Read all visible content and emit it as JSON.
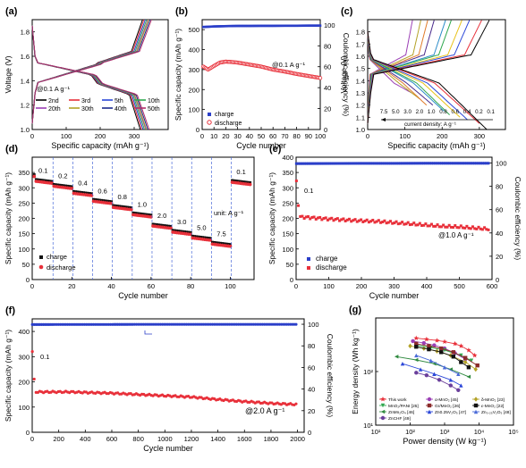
{
  "figure": {
    "panels": [
      {
        "id": "a",
        "label": "(a)"
      },
      {
        "id": "b",
        "label": "(b)"
      },
      {
        "id": "c",
        "label": "(c)"
      },
      {
        "id": "d",
        "label": "(d)"
      },
      {
        "id": "e",
        "label": "(e)"
      },
      {
        "id": "f",
        "label": "(f)"
      },
      {
        "id": "g",
        "label": "(g)"
      }
    ]
  },
  "chart_data": [
    {
      "id": "a",
      "type": "line",
      "xlabel": "Specific capacity (mAh g⁻¹)",
      "ylabel": "Voltage (V)",
      "xlim": [
        0,
        400
      ],
      "ylim": [
        1.0,
        1.9
      ],
      "xticks": [
        "0",
        "100",
        "200",
        "300"
      ],
      "yticks": [
        "1.0",
        "1.2",
        "1.4",
        "1.6",
        "1.8"
      ],
      "annotation": "@0.1 A g⁻¹",
      "legend_position": "bottom-left",
      "series": [
        {
          "name": "2nd",
          "color": "#000000",
          "capacity": 318
        },
        {
          "name": "3rd",
          "color": "#e8303a",
          "capacity": 322
        },
        {
          "name": "5th",
          "color": "#2b47d8",
          "capacity": 326
        },
        {
          "name": "10th",
          "color": "#2fa84f",
          "capacity": 330
        },
        {
          "name": "20th",
          "color": "#9b3fb5",
          "capacity": 334
        },
        {
          "name": "30th",
          "color": "#b3a227",
          "capacity": 336
        },
        {
          "name": "40th",
          "color": "#1a2a8c",
          "capacity": 340
        },
        {
          "name": "50th",
          "color": "#b0306a",
          "capacity": 344
        }
      ]
    },
    {
      "id": "b",
      "type": "scatter",
      "xlabel": "Cycle number",
      "ylabel": "Specific capacity (mAh g⁻¹)",
      "y2label": "Coulombic efficiency (%)",
      "xlim": [
        0,
        100
      ],
      "ylim": [
        0,
        550
      ],
      "y2lim": [
        0,
        105
      ],
      "xticks": [
        "0",
        "10",
        "20",
        "30",
        "40",
        "50",
        "60",
        "70",
        "80",
        "90",
        "100"
      ],
      "yticks": [
        "0",
        "100",
        "200",
        "300",
        "400",
        "500"
      ],
      "y2ticks": [
        "0",
        "20",
        "40",
        "60",
        "80",
        "100"
      ],
      "annotation": "@0.1 A g⁻¹",
      "legend": [
        "charge",
        "discharge"
      ],
      "series": [
        {
          "name": "charge",
          "axis": "y2",
          "color": "#2b3fc9",
          "x": [
            1,
            10,
            20,
            30,
            40,
            50,
            60,
            70,
            80,
            90,
            100
          ],
          "values": [
            98,
            98.5,
            98.8,
            99,
            99,
            99.1,
            99.1,
            99.2,
            99.2,
            99.3,
            99.3
          ]
        },
        {
          "name": "discharge",
          "axis": "y",
          "color": "#e8303a",
          "x": [
            1,
            5,
            10,
            15,
            20,
            25,
            30,
            40,
            50,
            60,
            70,
            80,
            90,
            100
          ],
          "values": [
            315,
            300,
            318,
            335,
            340,
            338,
            335,
            325,
            315,
            300,
            290,
            278,
            268,
            258
          ]
        }
      ]
    },
    {
      "id": "c",
      "type": "line",
      "xlabel": "Specific capacity (mAh g⁻¹)",
      "ylabel": "Voltage (V)",
      "xlim": [
        0,
        370
      ],
      "ylim": [
        1.0,
        1.9
      ],
      "xticks": [
        "0",
        "100",
        "200",
        "300"
      ],
      "yticks": [
        "1.0",
        "1.1",
        "1.2",
        "1.3",
        "1.4",
        "1.5",
        "1.6",
        "1.7",
        "1.8"
      ],
      "annotation": "current density: A g⁻¹",
      "series": [
        {
          "name": "7.5",
          "color": "#9b3fb5",
          "capacity": 118,
          "vmin": 1.3
        },
        {
          "name": "5.0",
          "color": "#b3a227",
          "capacity": 140,
          "vmin": 1.25
        },
        {
          "name": "3.0",
          "color": "#e07b2a",
          "capacity": 158,
          "vmin": 1.2
        },
        {
          "name": "2.0",
          "color": "#4a2b8c",
          "capacity": 175,
          "vmin": 1.2
        },
        {
          "name": "1.0",
          "color": "#2b8cc9",
          "capacity": 205,
          "vmin": 1.15
        },
        {
          "name": "0.8",
          "color": "#2fa84f",
          "capacity": 220,
          "vmin": 1.12
        },
        {
          "name": "0.6",
          "color": "#e8c21a",
          "capacity": 248,
          "vmin": 1.1
        },
        {
          "name": "0.4",
          "color": "#2b47d8",
          "capacity": 268,
          "vmin": 1.08
        },
        {
          "name": "0.2",
          "color": "#e8303a",
          "capacity": 300,
          "vmin": 1.05
        },
        {
          "name": "0.1",
          "color": "#000000",
          "capacity": 320,
          "vmin": 1.0
        }
      ]
    },
    {
      "id": "d",
      "type": "scatter",
      "xlabel": "Cycle number",
      "ylabel": "Specific capacity (mAh g⁻¹)",
      "xlim": [
        0,
        112
      ],
      "ylim": [
        0,
        400
      ],
      "xticks": [
        "0",
        "20",
        "40",
        "60",
        "80",
        "100"
      ],
      "yticks": [
        "0",
        "50",
        "100",
        "150",
        "200",
        "250",
        "300",
        "350"
      ],
      "unit_note": "unit: A g⁻¹",
      "legend": [
        "charge",
        "discharge"
      ],
      "stages": [
        {
          "label": "0.1",
          "start": 1,
          "end": 10,
          "value": 322
        },
        {
          "label": "0.2",
          "start": 11,
          "end": 20,
          "value": 305
        },
        {
          "label": "0.4",
          "start": 21,
          "end": 30,
          "value": 282
        },
        {
          "label": "0.6",
          "start": 31,
          "end": 40,
          "value": 256
        },
        {
          "label": "0.8",
          "start": 41,
          "end": 50,
          "value": 236
        },
        {
          "label": "1.0",
          "start": 51,
          "end": 60,
          "value": 212
        },
        {
          "label": "2.0",
          "start": 61,
          "end": 70,
          "value": 175
        },
        {
          "label": "3.0",
          "start": 71,
          "end": 80,
          "value": 155
        },
        {
          "label": "5.0",
          "start": 81,
          "end": 90,
          "value": 136
        },
        {
          "label": "7.5",
          "start": 91,
          "end": 100,
          "value": 116
        },
        {
          "label": "0.1",
          "start": 101,
          "end": 110,
          "value": 318
        }
      ]
    },
    {
      "id": "e",
      "type": "scatter",
      "xlabel": "Cycle number",
      "ylabel": "Specific capacity (mAh g⁻¹)",
      "y2label": "Coulombic efficiency (%)",
      "xlim": [
        0,
        600
      ],
      "ylim": [
        0,
        400
      ],
      "y2lim": [
        0,
        105
      ],
      "xticks": [
        "0",
        "100",
        "200",
        "300",
        "400",
        "500",
        "600"
      ],
      "yticks": [
        "0",
        "50",
        "100",
        "150",
        "200",
        "250",
        "300",
        "350",
        "400"
      ],
      "y2ticks": [
        "0",
        "20",
        "40",
        "60",
        "80",
        "100"
      ],
      "annotation": "@1.0 A g⁻¹",
      "start_note": "0.1",
      "legend": [
        "charge",
        "discharge"
      ],
      "series": [
        {
          "name": "charge",
          "axis": "y2",
          "color": "#2b3fc9",
          "x": [
            10,
            100,
            200,
            300,
            400,
            500,
            590
          ],
          "values": [
            99.5,
            99.6,
            99.7,
            99.7,
            99.8,
            99.8,
            99.8
          ]
        },
        {
          "name": "discharge",
          "axis": "y",
          "color": "#e8303a",
          "x": [
            1,
            3,
            10,
            50,
            100,
            150,
            200,
            250,
            300,
            350,
            400,
            450,
            500,
            550,
            590
          ],
          "values": [
            320,
            300,
            205,
            202,
            198,
            195,
            192,
            190,
            186,
            182,
            178,
            174,
            172,
            168,
            165
          ]
        }
      ]
    },
    {
      "id": "f",
      "type": "scatter",
      "xlabel": "Cycle number",
      "ylabel": "Specific capacity (mAh g⁻¹)",
      "y2label": "Coulombic efficiency (%)",
      "xlim": [
        0,
        2050
      ],
      "ylim": [
        0,
        450
      ],
      "y2lim": [
        0,
        105
      ],
      "xticks": [
        "0",
        "200",
        "400",
        "600",
        "800",
        "1000",
        "1200",
        "1400",
        "1600",
        "1800",
        "2000"
      ],
      "yticks": [
        "0",
        "100",
        "200",
        "300",
        "400"
      ],
      "y2ticks": [
        "0",
        "20",
        "40",
        "60",
        "80",
        "100"
      ],
      "annotation": "@2.0 A g⁻¹",
      "start_note": "0.1",
      "series": [
        {
          "name": "charge",
          "axis": "y2",
          "color": "#2b3fc9",
          "x": [
            20,
            200,
            400,
            600,
            800,
            1000,
            1200,
            1400,
            1600,
            1800,
            2000
          ],
          "values": [
            99.7,
            99.8,
            99.8,
            99.8,
            99.9,
            99.9,
            99.9,
            99.9,
            99.9,
            99.9,
            99.9
          ]
        },
        {
          "name": "discharge",
          "axis": "y",
          "color": "#e8303a",
          "x": [
            1,
            5,
            20,
            100,
            200,
            300,
            400,
            600,
            800,
            1000,
            1200,
            1400,
            1600,
            1800,
            2000
          ],
          "values": [
            320,
            305,
            160,
            160,
            160,
            160,
            158,
            155,
            150,
            145,
            140,
            130,
            122,
            115,
            110
          ]
        }
      ]
    },
    {
      "id": "g",
      "type": "line",
      "xlabel": "Power density (W kg⁻¹)",
      "ylabel": "Energy density (Wh kg⁻¹)",
      "xscale": "log",
      "yscale": "log",
      "xlim": [
        10,
        100000
      ],
      "ylim": [
        10,
        1000
      ],
      "xticks": [
        "10¹",
        "10²",
        "10³",
        "10⁴",
        "10⁵"
      ],
      "yticks": [
        "10¹",
        "10²"
      ],
      "series": [
        {
          "name": "This work",
          "color": "#e8303a",
          "marker": "star",
          "x": [
            150,
            300,
            600,
            1000,
            2000,
            3000,
            5000,
            7500
          ],
          "values": [
            420,
            400,
            380,
            360,
            330,
            300,
            250,
            200
          ]
        },
        {
          "name": "α-MnO₂ [45]",
          "color": "#9b3fb5",
          "marker": "circle",
          "x": [
            120,
            250,
            500,
            1000,
            2000,
            4000
          ],
          "values": [
            370,
            340,
            310,
            270,
            220,
            170
          ]
        },
        {
          "name": "δ-MnO₂ [23]",
          "color": "#b3a227",
          "marker": "diamond",
          "x": [
            100,
            250,
            600,
            1500,
            4000,
            8000
          ],
          "values": [
            300,
            270,
            240,
            200,
            150,
            110
          ]
        },
        {
          "name": "MnO₂/PANI [25]",
          "color": "#2fa84f",
          "marker": "triangle-down",
          "x": [
            150,
            400,
            1000,
            3000,
            6000
          ],
          "values": [
            310,
            280,
            250,
            200,
            160
          ]
        },
        {
          "name": "Gr/MnO₂ [26]",
          "color": "#8a2b2b",
          "marker": "square",
          "x": [
            150,
            350,
            800,
            1800,
            4000,
            9000
          ],
          "values": [
            330,
            300,
            270,
            230,
            180,
            130
          ]
        },
        {
          "name": "ε-MnO₂ [22]",
          "color": "#111111",
          "marker": "square",
          "x": [
            150,
            350,
            800,
            1800,
            3000,
            5000
          ],
          "values": [
            290,
            260,
            230,
            190,
            150,
            120
          ]
        },
        {
          "name": "ZnMn₂O₄ [46]",
          "color": "#2f8a3f",
          "marker": "triangle-left",
          "x": [
            40,
            150,
            500,
            1500,
            5000
          ],
          "values": [
            190,
            165,
            140,
            110,
            80
          ]
        },
        {
          "name": "Zn0.25V₂O₅ [47]",
          "color": "#2b47d8",
          "marker": "triangle-up",
          "x": [
            60,
            200,
            500,
            1500,
            3000
          ],
          "values": [
            140,
            110,
            90,
            70,
            55
          ]
        },
        {
          "name": "Zn₀.₂₅V₂O₅ [48]",
          "color": "#4a6ad8",
          "marker": "triangle-up",
          "x": [
            150,
            400,
            1000,
            2500
          ],
          "values": [
            200,
            160,
            120,
            90
          ]
        },
        {
          "name": "ZnCHF [49]",
          "color": "#6a3f9b",
          "marker": "circle",
          "x": [
            150,
            300,
            700,
            1500,
            2500
          ],
          "values": [
            95,
            85,
            70,
            55,
            45
          ]
        }
      ]
    }
  ]
}
